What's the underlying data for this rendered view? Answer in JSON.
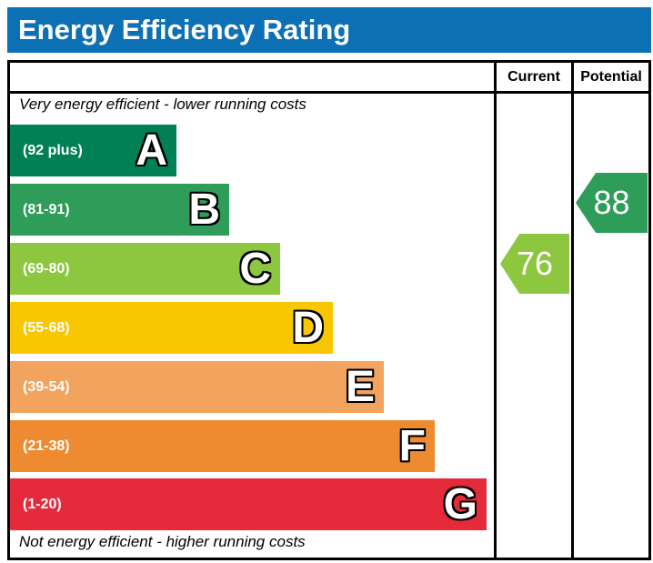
{
  "chart_data": {
    "type": "bar",
    "variant": "epc-energy-efficiency-rating",
    "title": "Energy Efficiency Rating",
    "columns": [
      "Current",
      "Potential"
    ],
    "annotations": {
      "top": "Very energy efficient - lower running costs",
      "bottom": "Not energy efficient - higher running costs"
    },
    "bands": [
      {
        "letter": "A",
        "range_label": "(92 plus)",
        "min": 92,
        "max": 100,
        "color": "#008054"
      },
      {
        "letter": "B",
        "range_label": "(81-91)",
        "min": 81,
        "max": 91,
        "color": "#2e9d5a"
      },
      {
        "letter": "C",
        "range_label": "(69-80)",
        "min": 69,
        "max": 80,
        "color": "#8dc63f"
      },
      {
        "letter": "D",
        "range_label": "(55-68)",
        "min": 55,
        "max": 68,
        "color": "#f8c700"
      },
      {
        "letter": "E",
        "range_label": "(39-54)",
        "min": 39,
        "max": 54,
        "color": "#f2a35e"
      },
      {
        "letter": "F",
        "range_label": "(21-38)",
        "min": 21,
        "max": 38,
        "color": "#ee8b31"
      },
      {
        "letter": "G",
        "range_label": "(1-20)",
        "min": 1,
        "max": 20,
        "color": "#e52a3c"
      }
    ],
    "current": {
      "value": 76,
      "band": "C",
      "color": "#8dc63f"
    },
    "potential": {
      "value": 88,
      "band": "B",
      "color": "#2e9d5a"
    },
    "theme": {
      "header_background": "#0c70b4",
      "header_text": "#ffffff",
      "border": "#000000"
    }
  }
}
